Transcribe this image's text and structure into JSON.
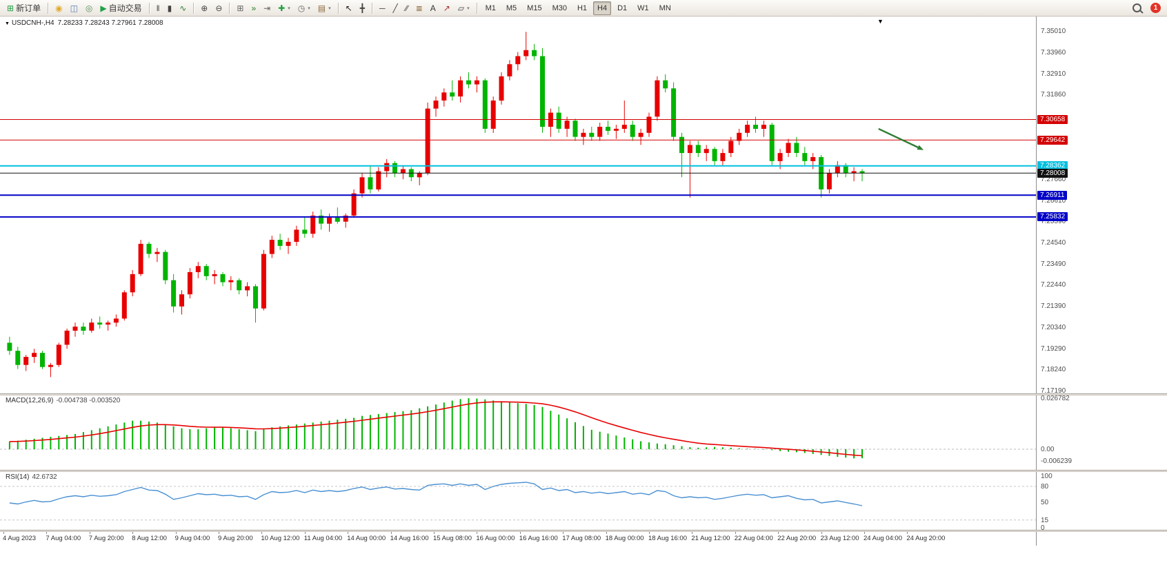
{
  "colors": {
    "bull": "#e80000",
    "bear": "#00b400",
    "macd_hist": "#00b400",
    "macd_signal": "#e80000",
    "rsi_line": "#4a90d2",
    "arrow": "#2e7d32",
    "axis_text": "#4c4c4c"
  },
  "toolbar": {
    "caret_glyph": "▾",
    "notification_count": "1",
    "timeframes": [
      "M1",
      "M5",
      "M15",
      "M30",
      "H1",
      "H4",
      "D1",
      "W1",
      "MN"
    ],
    "active_timeframe": "H4",
    "items": [
      {
        "t": "btn",
        "name": "new-order-button",
        "icon": "new-order-icon",
        "glyph": "⊞",
        "color": "#1e9e40",
        "label": "新订单"
      },
      {
        "t": "sep"
      },
      {
        "t": "icon",
        "name": "signals-icon",
        "glyph": "◉",
        "color": "#e2aa2a"
      },
      {
        "t": "icon",
        "name": "market-watch-icon",
        "glyph": "◫",
        "color": "#5b7fb5"
      },
      {
        "t": "icon",
        "name": "community-icon",
        "glyph": "◎",
        "color": "#55915a"
      },
      {
        "t": "btn",
        "name": "autotrade-button",
        "icon": "autotrade-play-icon",
        "glyph": "▶",
        "color": "#21a14a",
        "label": "自动交易"
      },
      {
        "t": "sep"
      },
      {
        "t": "icon",
        "name": "bar-chart-icon",
        "glyph": "‖",
        "color": "#444444"
      },
      {
        "t": "icon",
        "name": "candlestick-chart-icon",
        "glyph": "▮",
        "color": "#444444"
      },
      {
        "t": "icon",
        "name": "line-chart-icon",
        "glyph": "∿",
        "color": "#2a7a2a"
      },
      {
        "t": "sep"
      },
      {
        "t": "icon",
        "name": "zoom-in-icon",
        "glyph": "⊕",
        "color": "#444444"
      },
      {
        "t": "icon",
        "name": "zoom-out-icon",
        "glyph": "⊖",
        "color": "#444444"
      },
      {
        "t": "sep"
      },
      {
        "t": "icon",
        "name": "tile-windows-icon",
        "glyph": "⊞",
        "color": "#666666"
      },
      {
        "t": "icon",
        "name": "auto-scroll-icon",
        "glyph": "»",
        "color": "#2a7a2a"
      },
      {
        "t": "icon",
        "name": "chart-shift-icon",
        "glyph": "⇥",
        "color": "#666666"
      },
      {
        "t": "icon",
        "name": "indicators-icon",
        "glyph": "✚",
        "color": "#1e9e40",
        "caret": true
      },
      {
        "t": "icon",
        "name": "periods-clock-icon",
        "glyph": "◷",
        "color": "#666666",
        "caret": true
      },
      {
        "t": "icon",
        "name": "templates-icon",
        "glyph": "▤",
        "color": "#8a6a3a",
        "caret": true
      },
      {
        "t": "sep"
      },
      {
        "t": "icon",
        "name": "cursor-icon",
        "glyph": "↖",
        "color": "#222222"
      },
      {
        "t": "icon",
        "name": "crosshair-icon",
        "glyph": "╋",
        "color": "#444444"
      },
      {
        "t": "sep"
      },
      {
        "t": "icon",
        "name": "hline-icon",
        "glyph": "─",
        "color": "#444444"
      },
      {
        "t": "icon",
        "name": "trendline-icon",
        "glyph": "╱",
        "color": "#444444"
      },
      {
        "t": "icon",
        "name": "channel-icon",
        "glyph": "∕∕",
        "color": "#444444"
      },
      {
        "t": "icon",
        "name": "fibonacci-icon",
        "glyph": "≣",
        "color": "#8a6a3a"
      },
      {
        "t": "icon",
        "name": "text-icon",
        "glyph": "A",
        "color": "#333333"
      },
      {
        "t": "icon",
        "name": "arrow-tool-icon",
        "glyph": "↗",
        "color": "#a03030"
      },
      {
        "t": "icon",
        "name": "shapes-icon",
        "glyph": "▱",
        "color": "#444444",
        "caret": true
      },
      {
        "t": "sep"
      },
      {
        "t": "tf"
      }
    ]
  },
  "chart": {
    "symbol_title": "USDCNH-,H4",
    "ohlc_text": "7.28233 7.28243 7.27961 7.28008",
    "arrow_glyph": "▼"
  },
  "chart_data": [
    {
      "type": "candlestick",
      "symbol": "USDCNH-",
      "timeframe": "H4",
      "ohlc_display": {
        "open": "7.28233",
        "high": "7.28243",
        "low": "7.27961",
        "close": "7.28008"
      },
      "price_range": [
        7.1719,
        7.3501
      ],
      "current_price": 7.28008,
      "y_axis_ticks": [
        "7.35010",
        "7.33960",
        "7.32910",
        "7.31860",
        "7.27660",
        "7.26610",
        "7.25590",
        "7.24540",
        "7.23490",
        "7.22440",
        "7.21390",
        "7.20340",
        "7.19290",
        "7.18240",
        "7.17190"
      ],
      "levels": [
        {
          "price": 7.30658,
          "label": "7.30658",
          "color": "#d40000",
          "width": 1
        },
        {
          "price": 7.29642,
          "label": "7.29642",
          "color": "#d40000",
          "width": 1
        },
        {
          "price": 7.28362,
          "label": "7.28362",
          "color": "#00bfe0",
          "width": 2
        },
        {
          "price": 7.28008,
          "label": "7.28008",
          "color": "#111111",
          "width": 1,
          "current": true
        },
        {
          "price": 7.26911,
          "label": "7.26911",
          "color": "#0000c8",
          "width": 2
        },
        {
          "price": 7.25832,
          "label": "7.25832",
          "color": "#0000c8",
          "width": 2
        }
      ],
      "annotations": [
        {
          "type": "arrow",
          "name": "bearish-trend-arrow",
          "from_bar": 106,
          "from_price": 7.302,
          "to_bar": 111.5,
          "to_price": 7.2915,
          "color": "#2e7d32"
        }
      ],
      "x_labels": [
        "4 Aug 2023",
        "7 Aug 04:00",
        "7 Aug 20:00",
        "8 Aug 12:00",
        "9 Aug 04:00",
        "9 Aug 20:00",
        "10 Aug 12:00",
        "11 Aug 04:00",
        "14 Aug 00:00",
        "14 Aug 16:00",
        "15 Aug 08:00",
        "16 Aug 00:00",
        "16 Aug 16:00",
        "17 Aug 08:00",
        "18 Aug 00:00",
        "18 Aug 16:00",
        "21 Aug 12:00",
        "22 Aug 04:00",
        "22 Aug 20:00",
        "23 Aug 12:00",
        "24 Aug 04:00",
        "24 Aug 20:00"
      ],
      "candles": [
        [
          7.196,
          7.199,
          7.19,
          7.192
        ],
        [
          7.192,
          7.194,
          7.183,
          7.185
        ],
        [
          7.185,
          7.19,
          7.182,
          7.189
        ],
        [
          7.189,
          7.193,
          7.186,
          7.191
        ],
        [
          7.191,
          7.192,
          7.183,
          7.184
        ],
        [
          7.184,
          7.186,
          7.179,
          7.185
        ],
        [
          7.185,
          7.196,
          7.184,
          7.195
        ],
        [
          7.195,
          7.203,
          7.193,
          7.202
        ],
        [
          7.202,
          7.206,
          7.199,
          7.204
        ],
        [
          7.204,
          7.206,
          7.2,
          7.202
        ],
        [
          7.202,
          7.208,
          7.201,
          7.206
        ],
        [
          7.206,
          7.209,
          7.203,
          7.205
        ],
        [
          7.205,
          7.207,
          7.202,
          7.206
        ],
        [
          7.206,
          7.21,
          7.204,
          7.208
        ],
        [
          7.208,
          7.222,
          7.207,
          7.221
        ],
        [
          7.221,
          7.232,
          7.219,
          7.23
        ],
        [
          7.23,
          7.247,
          7.229,
          7.245
        ],
        [
          7.245,
          7.246,
          7.238,
          7.24
        ],
        [
          7.24,
          7.243,
          7.236,
          7.241
        ],
        [
          7.241,
          7.242,
          7.225,
          7.227
        ],
        [
          7.227,
          7.23,
          7.211,
          7.214
        ],
        [
          7.214,
          7.222,
          7.21,
          7.22
        ],
        [
          7.22,
          7.233,
          7.218,
          7.231
        ],
        [
          7.231,
          7.236,
          7.228,
          7.234
        ],
        [
          7.234,
          7.235,
          7.227,
          7.229
        ],
        [
          7.229,
          7.232,
          7.225,
          7.23
        ],
        [
          7.23,
          7.231,
          7.224,
          7.226
        ],
        [
          7.226,
          7.229,
          7.222,
          7.227
        ],
        [
          7.227,
          7.228,
          7.22,
          7.222
        ],
        [
          7.222,
          7.226,
          7.219,
          7.224
        ],
        [
          7.224,
          7.225,
          7.206,
          7.213
        ],
        [
          7.213,
          7.242,
          7.212,
          7.24
        ],
        [
          7.24,
          7.249,
          7.238,
          7.247
        ],
        [
          7.247,
          7.25,
          7.242,
          7.244
        ],
        [
          7.244,
          7.248,
          7.24,
          7.246
        ],
        [
          7.246,
          7.254,
          7.244,
          7.252
        ],
        [
          7.252,
          7.258,
          7.248,
          7.25
        ],
        [
          7.25,
          7.261,
          7.248,
          7.259
        ],
        [
          7.259,
          7.262,
          7.252,
          7.255
        ],
        [
          7.255,
          7.26,
          7.251,
          7.258
        ],
        [
          7.258,
          7.263,
          7.255,
          7.256
        ],
        [
          7.256,
          7.26,
          7.253,
          7.259
        ],
        [
          7.259,
          7.272,
          7.258,
          7.27
        ],
        [
          7.27,
          7.28,
          7.268,
          7.278
        ],
        [
          7.278,
          7.284,
          7.27,
          7.272
        ],
        [
          7.272,
          7.283,
          7.271,
          7.281
        ],
        [
          7.281,
          7.287,
          7.278,
          7.285
        ],
        [
          7.285,
          7.286,
          7.278,
          7.28
        ],
        [
          7.28,
          7.284,
          7.277,
          7.282
        ],
        [
          7.282,
          7.283,
          7.276,
          7.278
        ],
        [
          7.278,
          7.281,
          7.274,
          7.28
        ],
        [
          7.28,
          7.315,
          7.279,
          7.312
        ],
        [
          7.312,
          7.318,
          7.308,
          7.316
        ],
        [
          7.316,
          7.322,
          7.313,
          7.32
        ],
        [
          7.32,
          7.326,
          7.316,
          7.318
        ],
        [
          7.318,
          7.328,
          7.315,
          7.326
        ],
        [
          7.326,
          7.33,
          7.322,
          7.324
        ],
        [
          7.324,
          7.328,
          7.32,
          7.326
        ],
        [
          7.326,
          7.327,
          7.3,
          7.302
        ],
        [
          7.302,
          7.318,
          7.3,
          7.316
        ],
        [
          7.316,
          7.33,
          7.314,
          7.328
        ],
        [
          7.328,
          7.336,
          7.326,
          7.334
        ],
        [
          7.334,
          7.34,
          7.331,
          7.338
        ],
        [
          7.338,
          7.35,
          7.336,
          7.341
        ],
        [
          7.341,
          7.344,
          7.336,
          7.338
        ],
        [
          7.338,
          7.342,
          7.3,
          7.303
        ],
        [
          7.303,
          7.312,
          7.298,
          7.31
        ],
        [
          7.31,
          7.313,
          7.3,
          7.302
        ],
        [
          7.302,
          7.308,
          7.298,
          7.306
        ],
        [
          7.306,
          7.307,
          7.296,
          7.298
        ],
        [
          7.298,
          7.302,
          7.294,
          7.3
        ],
        [
          7.3,
          7.303,
          7.296,
          7.298
        ],
        [
          7.298,
          7.305,
          7.296,
          7.303
        ],
        [
          7.303,
          7.306,
          7.299,
          7.301
        ],
        [
          7.301,
          7.304,
          7.297,
          7.302
        ],
        [
          7.302,
          7.316,
          7.3,
          7.304
        ],
        [
          7.304,
          7.306,
          7.296,
          7.298
        ],
        [
          7.298,
          7.302,
          7.294,
          7.3
        ],
        [
          7.3,
          7.31,
          7.298,
          7.308
        ],
        [
          7.308,
          7.328,
          7.306,
          7.326
        ],
        [
          7.326,
          7.329,
          7.32,
          7.322
        ],
        [
          7.322,
          7.325,
          7.296,
          7.298
        ],
        [
          7.298,
          7.3,
          7.278,
          7.29
        ],
        [
          7.29,
          7.296,
          7.268,
          7.294
        ],
        [
          7.294,
          7.296,
          7.288,
          7.29
        ],
        [
          7.29,
          7.294,
          7.286,
          7.292
        ],
        [
          7.292,
          7.293,
          7.284,
          7.286
        ],
        [
          7.286,
          7.292,
          7.284,
          7.29
        ],
        [
          7.29,
          7.298,
          7.288,
          7.296
        ],
        [
          7.296,
          7.302,
          7.294,
          7.3
        ],
        [
          7.3,
          7.306,
          7.298,
          7.304
        ],
        [
          7.304,
          7.308,
          7.3,
          7.302
        ],
        [
          7.302,
          7.306,
          7.298,
          7.304
        ],
        [
          7.304,
          7.305,
          7.284,
          7.286
        ],
        [
          7.286,
          7.292,
          7.282,
          7.29
        ],
        [
          7.29,
          7.297,
          7.288,
          7.295
        ],
        [
          7.295,
          7.298,
          7.288,
          7.29
        ],
        [
          7.29,
          7.293,
          7.284,
          7.286
        ],
        [
          7.286,
          7.29,
          7.282,
          7.288
        ],
        [
          7.288,
          7.289,
          7.268,
          7.272
        ],
        [
          7.272,
          7.282,
          7.27,
          7.28
        ],
        [
          7.28,
          7.286,
          7.278,
          7.284
        ],
        [
          7.284,
          7.285,
          7.278,
          7.28
        ],
        [
          7.28,
          7.283,
          7.276,
          7.281
        ],
        [
          7.281,
          7.282,
          7.276,
          7.28008
        ]
      ]
    },
    {
      "type": "macd",
      "label": "MACD(12,26,9)",
      "values_display": "-0.004738 -0.003520",
      "axis_labels": [
        "0.026782",
        "0.00",
        "-0.006239"
      ],
      "range": [
        -0.0109,
        0.0282
      ],
      "histogram": [
        0.004,
        0.0045,
        0.005,
        0.0055,
        0.006,
        0.0065,
        0.007,
        0.0075,
        0.008,
        0.009,
        0.01,
        0.011,
        0.012,
        0.013,
        0.014,
        0.015,
        0.015,
        0.0145,
        0.014,
        0.013,
        0.012,
        0.011,
        0.0105,
        0.0105,
        0.011,
        0.0115,
        0.0115,
        0.011,
        0.0105,
        0.01,
        0.0095,
        0.0105,
        0.0115,
        0.012,
        0.0125,
        0.013,
        0.0135,
        0.014,
        0.0145,
        0.015,
        0.0155,
        0.016,
        0.0165,
        0.0175,
        0.018,
        0.0185,
        0.019,
        0.0195,
        0.02,
        0.0205,
        0.0215,
        0.0225,
        0.0235,
        0.0245,
        0.0255,
        0.0263,
        0.0268,
        0.0266,
        0.0262,
        0.0256,
        0.025,
        0.0246,
        0.0242,
        0.0238,
        0.0232,
        0.0222,
        0.0202,
        0.0182,
        0.0162,
        0.0142,
        0.0122,
        0.0102,
        0.0092,
        0.0082,
        0.0072,
        0.0062,
        0.0052,
        0.0042,
        0.0036,
        0.003,
        0.0026,
        0.0021,
        0.0016,
        0.0011,
        0.0008,
        0.001,
        0.0012,
        0.001,
        0.0008,
        0.0005,
        0.0003,
        0.0002,
        -0.0002,
        -0.0005,
        -0.001,
        -0.0013,
        -0.0016,
        -0.002,
        -0.0025,
        -0.003,
        -0.0035,
        -0.004,
        -0.0044,
        -0.0048,
        -0.004738
      ]
    },
    {
      "type": "rsi",
      "label": "RSI(14)",
      "value_display": "42.6732",
      "axis_labels": [
        "100",
        "80",
        "50",
        "15",
        "0"
      ],
      "level_lines": [
        80,
        15
      ],
      "range": [
        0,
        100
      ],
      "values": [
        48,
        46,
        50,
        53,
        50,
        51,
        56,
        60,
        62,
        60,
        63,
        61,
        62,
        64,
        70,
        74,
        78,
        73,
        72,
        65,
        55,
        58,
        62,
        66,
        64,
        65,
        62,
        63,
        60,
        61,
        55,
        64,
        70,
        68,
        69,
        72,
        68,
        73,
        70,
        72,
        70,
        72,
        76,
        79,
        74,
        77,
        79,
        75,
        76,
        74,
        73,
        82,
        84,
        85,
        82,
        85,
        82,
        84,
        74,
        80,
        84,
        86,
        87,
        88,
        85,
        74,
        77,
        72,
        74,
        68,
        70,
        67,
        69,
        66,
        68,
        70,
        65,
        67,
        64,
        72,
        70,
        62,
        58,
        60,
        58,
        59,
        55,
        57,
        60,
        63,
        65,
        63,
        64,
        58,
        60,
        62,
        57,
        54,
        55,
        48,
        50,
        52,
        49,
        46,
        42.7
      ]
    }
  ]
}
